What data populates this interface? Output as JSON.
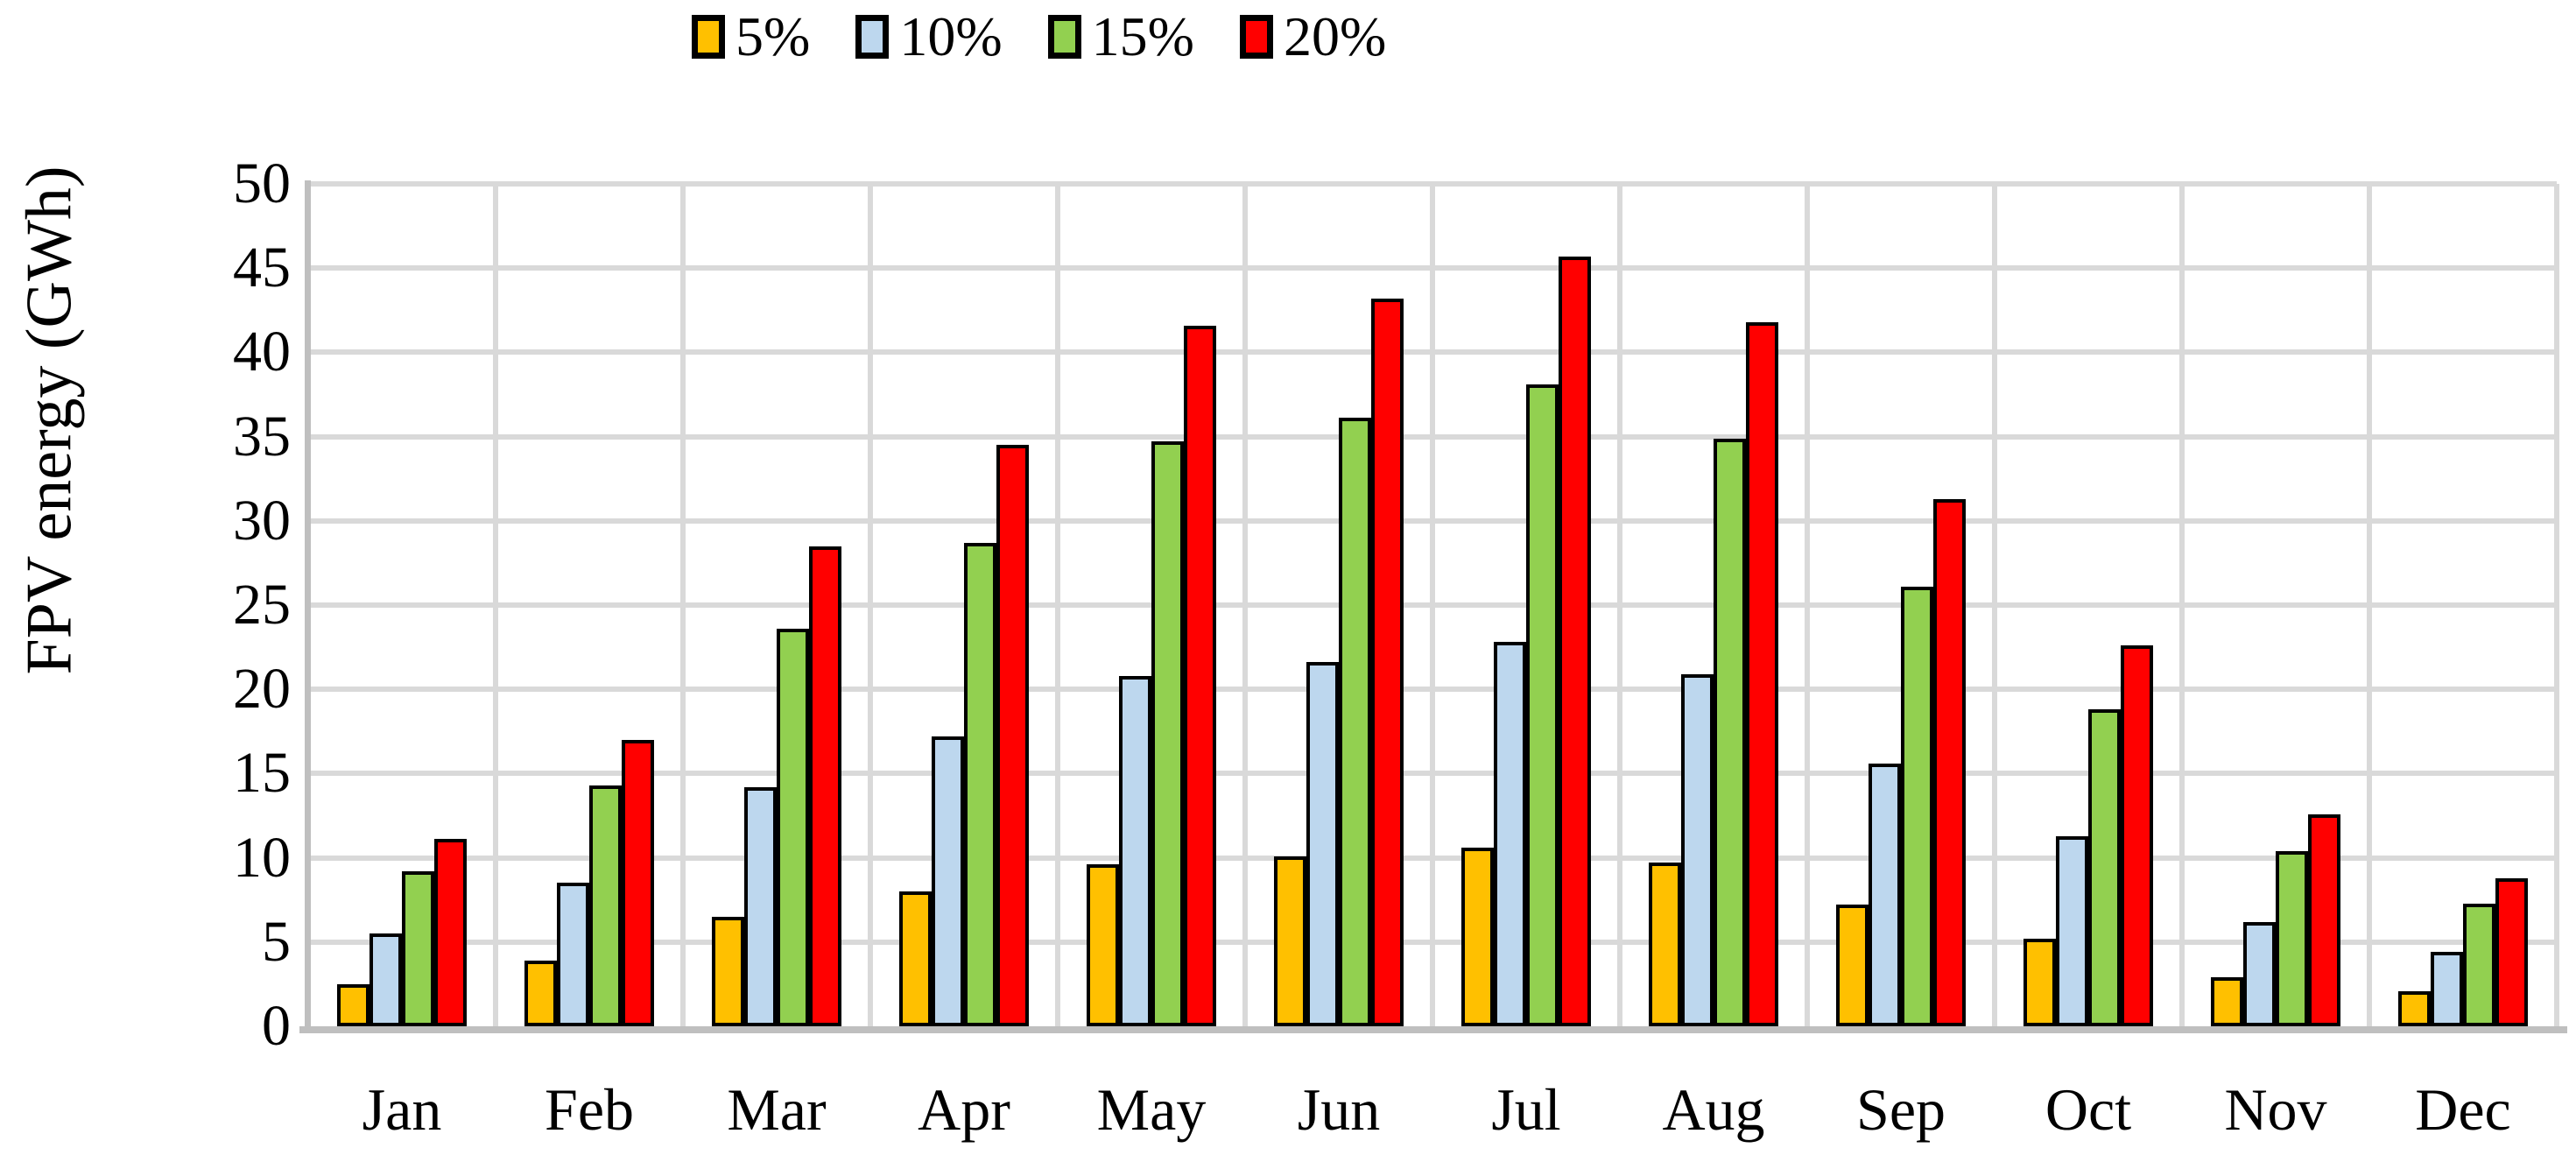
{
  "figure": {
    "background": "#FFFFFF",
    "y_axis_title": "FPV energy (GWh)"
  },
  "colors": {
    "gridline": "#D9D9D9",
    "axis_line": "#BFBFBF",
    "bar_border": "#000000",
    "text": "#000000"
  },
  "chart_data": {
    "type": "bar",
    "title": "",
    "xlabel": "",
    "ylabel": "FPV energy (GWh)",
    "ylim": [
      0,
      50
    ],
    "ytick_step": 5,
    "grid": true,
    "legend_position": "top",
    "categories": [
      "Jan",
      "Feb",
      "Mar",
      "Apr",
      "May",
      "Jun",
      "Jul",
      "Aug",
      "Sep",
      "Oct",
      "Nov",
      "Dec"
    ],
    "series": [
      {
        "name": "5%",
        "color": "#FFC000",
        "values": [
          2.5,
          3.9,
          6.5,
          8.0,
          9.6,
          10.1,
          10.6,
          9.7,
          7.2,
          5.2,
          2.9,
          2.1
        ]
      },
      {
        "name": "10%",
        "color": "#BDD7EE",
        "values": [
          5.5,
          8.5,
          14.2,
          17.2,
          20.8,
          21.6,
          22.8,
          20.9,
          15.6,
          11.3,
          6.2,
          4.4
        ]
      },
      {
        "name": "15%",
        "color": "#92D050",
        "values": [
          9.2,
          14.3,
          23.6,
          28.7,
          34.7,
          36.1,
          38.1,
          34.9,
          26.1,
          18.8,
          10.4,
          7.3
        ]
      },
      {
        "name": "20%",
        "color": "#FF0000",
        "values": [
          11.1,
          17.0,
          28.5,
          34.5,
          41.6,
          43.2,
          45.7,
          41.8,
          31.3,
          22.6,
          12.6,
          8.8
        ]
      }
    ]
  }
}
